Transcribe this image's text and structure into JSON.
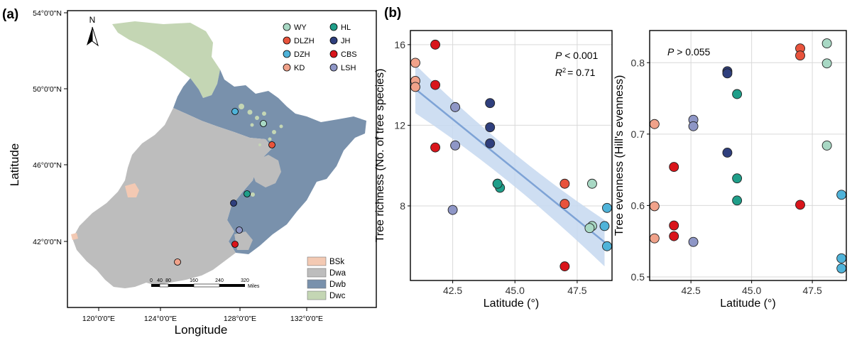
{
  "panel_a": {
    "label": "(a)",
    "north_arrow": "N",
    "xlabel": "Longitude",
    "ylabel": "Latitude",
    "lon_ticks": [
      "120°0'0\"E",
      "124°0'0\"E",
      "128°0'0\"E",
      "132°0'0\"E"
    ],
    "lat_ticks": [
      "54°0'0\"N",
      "50°0'0\"N",
      "46°0'0\"N",
      "42°0'0\"N"
    ],
    "sites_legend": [
      {
        "code": "WY",
        "color": "#a8d8c4"
      },
      {
        "code": "HL",
        "color": "#1f9e89"
      },
      {
        "code": "DLZH",
        "color": "#e8533c"
      },
      {
        "code": "JH",
        "color": "#2f3f7d"
      },
      {
        "code": "DZH",
        "color": "#4fb3d9"
      },
      {
        "code": "CBS",
        "color": "#d9151b"
      },
      {
        "code": "KD",
        "color": "#f0a28a"
      },
      {
        "code": "LSH",
        "color": "#8e96c6"
      }
    ],
    "climate_legend": [
      {
        "code": "BSk",
        "color": "#f3c9b3"
      },
      {
        "code": "Dwa",
        "color": "#bdbdbd"
      },
      {
        "code": "Dwb",
        "color": "#7991ac"
      },
      {
        "code": "Dwc",
        "color": "#c4d6b4"
      }
    ],
    "scale_bar": {
      "ticks": [
        "0",
        "40",
        "80",
        "160",
        "240",
        "320"
      ],
      "unit": "Miles"
    }
  },
  "chart_data": [
    {
      "type": "scatter",
      "panel_label": "(b)",
      "title": "",
      "xlabel": "Latitude (°)",
      "ylabel": "Tree richness (No. of tree species)",
      "xlim": [
        40.8,
        48.9
      ],
      "ylim": [
        4.3,
        16.7
      ],
      "xticks": [
        42.5,
        45.0,
        47.5
      ],
      "xtick_labels": [
        "42.5",
        "45.0",
        "47.5"
      ],
      "yticks": [
        8,
        12,
        16
      ],
      "ytick_labels": [
        "8",
        "12",
        "16"
      ],
      "grid": true,
      "annotations": {
        "p": "P",
        "p_value": " < 0.001",
        "r": "R",
        "r_sup": "2",
        "r_value": "= 0.71"
      },
      "fit": {
        "x": [
          41.0,
          48.6
        ],
        "y": [
          13.8,
          6.2
        ],
        "ci_upper": [
          15.0,
          7.3
        ],
        "ci_lower": [
          12.6,
          5.0
        ],
        "ci_mid_upper": 10.4,
        "ci_mid_lower": 9.5,
        "color": "#7ea3d6"
      },
      "points": [
        {
          "site": "KD",
          "x": 41.0,
          "y": 15.1
        },
        {
          "site": "KD",
          "x": 41.0,
          "y": 14.2
        },
        {
          "site": "KD",
          "x": 41.0,
          "y": 13.9
        },
        {
          "site": "CBS",
          "x": 41.8,
          "y": 16.0
        },
        {
          "site": "CBS",
          "x": 41.8,
          "y": 14.0
        },
        {
          "site": "CBS",
          "x": 41.8,
          "y": 10.9
        },
        {
          "site": "LSH",
          "x": 42.6,
          "y": 12.9
        },
        {
          "site": "LSH",
          "x": 42.6,
          "y": 11.0
        },
        {
          "site": "LSH",
          "x": 42.5,
          "y": 7.8
        },
        {
          "site": "JH",
          "x": 44.0,
          "y": 13.1
        },
        {
          "site": "JH",
          "x": 44.0,
          "y": 11.9
        },
        {
          "site": "JH",
          "x": 44.0,
          "y": 11.1
        },
        {
          "site": "HL",
          "x": 44.3,
          "y": 9.1
        },
        {
          "site": "HL",
          "x": 44.4,
          "y": 8.9
        },
        {
          "site": "HL",
          "x": 44.3,
          "y": 9.1
        },
        {
          "site": "DLZH",
          "x": 47.0,
          "y": 9.1
        },
        {
          "site": "DLZH",
          "x": 47.0,
          "y": 8.1
        },
        {
          "site": "CBS",
          "x": 47.0,
          "y": 5.0
        },
        {
          "site": "WY",
          "x": 48.1,
          "y": 9.1
        },
        {
          "site": "WY",
          "x": 48.1,
          "y": 7.0
        },
        {
          "site": "WY",
          "x": 48.0,
          "y": 6.9
        },
        {
          "site": "DZH",
          "x": 48.7,
          "y": 7.9
        },
        {
          "site": "DZH",
          "x": 48.6,
          "y": 7.0
        },
        {
          "site": "DZH",
          "x": 48.7,
          "y": 6.0
        }
      ]
    },
    {
      "type": "scatter",
      "title": "",
      "xlabel": "Latitude (°)",
      "ylabel": "Tree evenness (Hill's evenness)",
      "xlim": [
        40.8,
        48.9
      ],
      "ylim": [
        0.495,
        0.845
      ],
      "xticks": [
        42.5,
        45.0,
        47.5
      ],
      "xtick_labels": [
        "42.5",
        "45.0",
        "47.5"
      ],
      "yticks": [
        0.5,
        0.6,
        0.7,
        0.8
      ],
      "ytick_labels": [
        "0.5",
        "0.6",
        "0.7",
        "0.8"
      ],
      "grid": true,
      "annotations": {
        "p": "P",
        "p_value": " > 0.055"
      },
      "points": [
        {
          "site": "KD",
          "x": 41.0,
          "y": 0.714
        },
        {
          "site": "KD",
          "x": 41.0,
          "y": 0.599
        },
        {
          "site": "KD",
          "x": 41.0,
          "y": 0.554
        },
        {
          "site": "CBS",
          "x": 41.8,
          "y": 0.654
        },
        {
          "site": "CBS",
          "x": 41.8,
          "y": 0.572
        },
        {
          "site": "CBS",
          "x": 41.8,
          "y": 0.557
        },
        {
          "site": "LSH",
          "x": 42.6,
          "y": 0.72
        },
        {
          "site": "LSH",
          "x": 42.6,
          "y": 0.711
        },
        {
          "site": "LSH",
          "x": 42.6,
          "y": 0.549
        },
        {
          "site": "JH",
          "x": 44.0,
          "y": 0.788
        },
        {
          "site": "JH",
          "x": 44.0,
          "y": 0.785
        },
        {
          "site": "JH",
          "x": 44.0,
          "y": 0.674
        },
        {
          "site": "HL",
          "x": 44.4,
          "y": 0.756
        },
        {
          "site": "HL",
          "x": 44.4,
          "y": 0.638
        },
        {
          "site": "HL",
          "x": 44.4,
          "y": 0.607
        },
        {
          "site": "DLZH",
          "x": 47.0,
          "y": 0.82
        },
        {
          "site": "DLZH",
          "x": 47.0,
          "y": 0.81
        },
        {
          "site": "CBS",
          "x": 47.0,
          "y": 0.601
        },
        {
          "site": "WY",
          "x": 48.1,
          "y": 0.827
        },
        {
          "site": "WY",
          "x": 48.1,
          "y": 0.799
        },
        {
          "site": "WY",
          "x": 48.1,
          "y": 0.684
        },
        {
          "site": "DZH",
          "x": 48.7,
          "y": 0.615
        },
        {
          "site": "DZH",
          "x": 48.7,
          "y": 0.526
        },
        {
          "site": "DZH",
          "x": 48.7,
          "y": 0.512
        }
      ]
    }
  ]
}
